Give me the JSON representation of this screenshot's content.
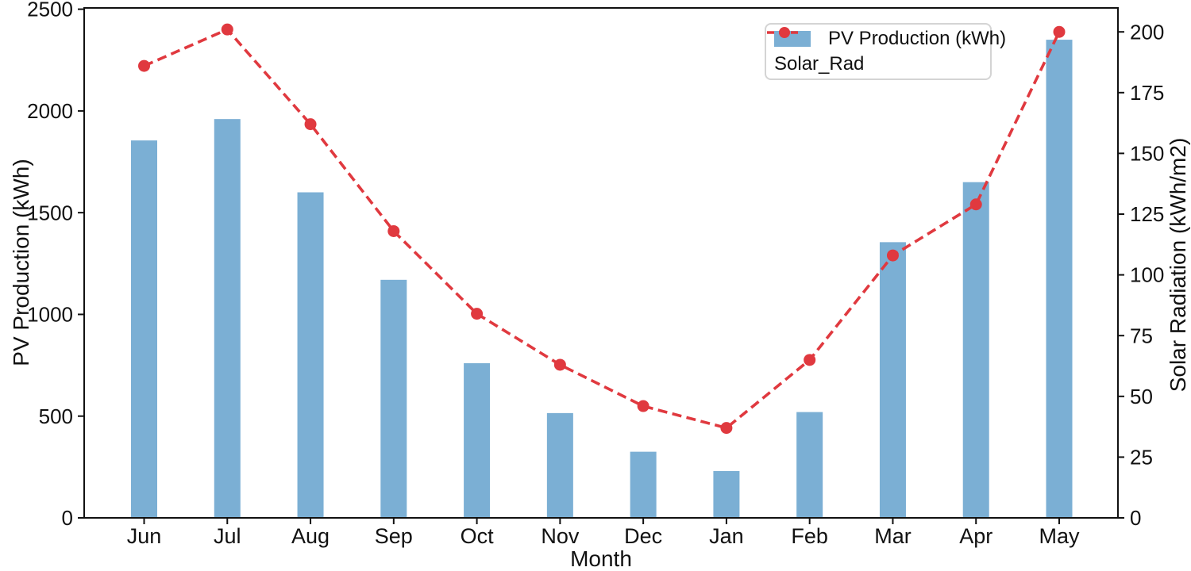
{
  "chart_data": {
    "type": "bar",
    "title": "",
    "xlabel": "Month",
    "ylabel_left": "PV Production (kWh)",
    "ylabel_right": "Solar Radiation (kWh/m2)",
    "categories": [
      "Jun",
      "Jul",
      "Aug",
      "Sep",
      "Oct",
      "Nov",
      "Dec",
      "Jan",
      "Feb",
      "Mar",
      "Apr",
      "May"
    ],
    "series": [
      {
        "name": "PV Production (kWh)",
        "type": "bar",
        "axis": "left",
        "color": "#7BAFD4",
        "values": [
          1855,
          1960,
          1600,
          1170,
          760,
          515,
          325,
          230,
          520,
          1355,
          1650,
          2350
        ]
      },
      {
        "name": "Solar_Rad",
        "type": "line",
        "axis": "right",
        "color": "#E0393F",
        "linestyle": "dashed",
        "marker": "circle",
        "values": [
          186,
          201,
          162,
          118,
          84,
          63,
          46,
          37,
          65,
          108,
          129,
          200
        ]
      }
    ],
    "ylim_left": [
      0,
      2500
    ],
    "ylim_right": [
      0,
      210
    ],
    "yticks_left": [
      0,
      500,
      1000,
      1500,
      2000,
      2500
    ],
    "yticks_right": [
      0,
      25,
      50,
      75,
      100,
      125,
      150,
      175,
      200
    ],
    "grid": false,
    "legend_position": "upper right"
  },
  "colors": {
    "bar": "#7BAFD4",
    "line": "#E0393F",
    "axis": "#111111",
    "background": "#ffffff",
    "legend_border": "#d4d4d4"
  }
}
